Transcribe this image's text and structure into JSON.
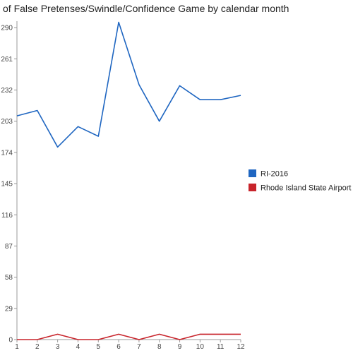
{
  "chart_data": {
    "type": "line",
    "title": "of False Pretenses/Swindle/Confidence Game by calendar month",
    "x": [
      1,
      2,
      3,
      4,
      5,
      6,
      7,
      8,
      9,
      10,
      11,
      12
    ],
    "xticks": [
      "1",
      "2",
      "3",
      "4",
      "5",
      "6",
      "7",
      "8",
      "9",
      "10",
      "11",
      "12"
    ],
    "yticks": [
      "0",
      "29",
      "58",
      "87",
      "116",
      "145",
      "174",
      "203",
      "232",
      "261",
      "290"
    ],
    "ylim": [
      0,
      296
    ],
    "grid": false,
    "legend": "right",
    "series": [
      {
        "name": "RI-2016",
        "color": "#1f66c1",
        "values": [
          208,
          213,
          179,
          198,
          189,
          295,
          237,
          203,
          236,
          223,
          223,
          227
        ]
      },
      {
        "name": "Rhode Island State Airport",
        "color": "#c8242b",
        "values": [
          0,
          0,
          5,
          0,
          0,
          5,
          0,
          5,
          0,
          5,
          5,
          5
        ]
      }
    ]
  }
}
